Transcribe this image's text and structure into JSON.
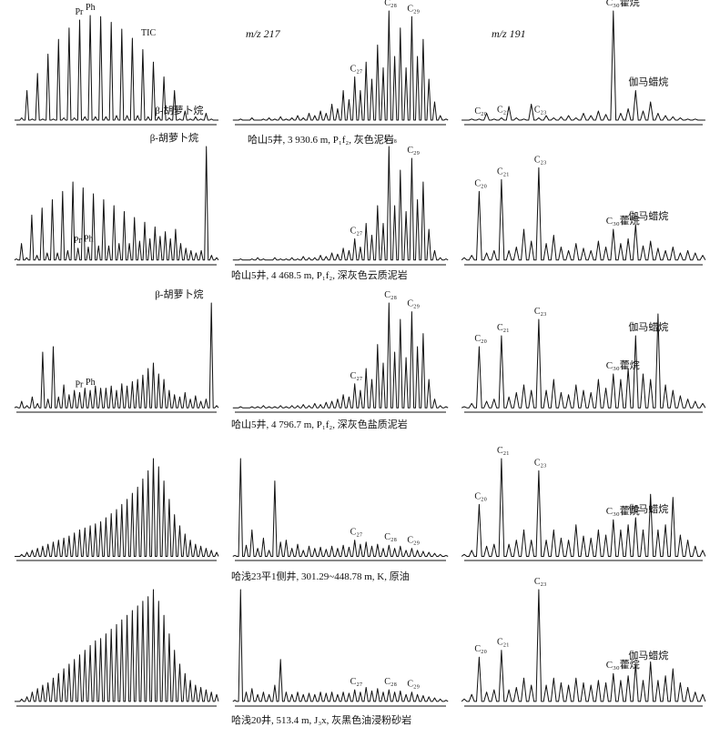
{
  "figure": {
    "panel_headers": [
      "TIC",
      "m/z 217",
      "m/z 191"
    ]
  },
  "chart_data": [
    {
      "type": "line",
      "sample_index": 0,
      "caption": "哈山5井, 3 930.6 m, P₁f₂, 灰色泥岩",
      "panels": {
        "tic": {
          "title": "TIC",
          "series": [
            {
              "name": "TIC",
              "values": [
                0.04,
                0.06,
                0.3,
                0.05,
                0.45,
                0.05,
                0.62,
                0.05,
                0.75,
                0.06,
                0.85,
                0.06,
                0.92,
                0.07,
                0.96,
                0.07,
                0.95,
                0.07,
                0.9,
                0.08,
                0.84,
                0.08,
                0.76,
                0.08,
                0.66,
                0.07,
                0.55,
                0.07,
                0.42,
                0.06,
                0.3,
                0.05,
                0.12,
                0.05,
                0.07,
                0.05,
                0.1,
                0.05,
                0.04
              ]
            }
          ],
          "labels": [
            {
              "text": "Pr",
              "color": "#2b3a8f"
            },
            {
              "text": "Ph",
              "color": "#2b3a8f"
            },
            {
              "text": "β-胡萝卜烷",
              "color": "#111111"
            }
          ]
        },
        "m217": {
          "title": "m/z 217",
          "series": [
            {
              "name": "m/z 217",
              "values": [
                0.04,
                0.05,
                0.04,
                0.06,
                0.04,
                0.05,
                0.06,
                0.05,
                0.07,
                0.05,
                0.06,
                0.08,
                0.06,
                0.1,
                0.08,
                0.12,
                0.1,
                0.18,
                0.14,
                0.3,
                0.22,
                0.42,
                0.3,
                0.55,
                0.4,
                0.7,
                0.5,
                1.0,
                0.6,
                0.85,
                0.5,
                0.95,
                0.6,
                0.75,
                0.4,
                0.2,
                0.08,
                0.05
              ]
            }
          ],
          "labels": [
            {
              "text": "C₂₇"
            },
            {
              "text": "C₂₈"
            },
            {
              "text": "C₂₉"
            }
          ]
        },
        "m191": {
          "title": "m/z 191",
          "series": [
            {
              "name": "m/z 191",
              "values": [
                0.04,
                0.05,
                0.05,
                0.1,
                0.05,
                0.06,
                0.16,
                0.06,
                0.05,
                0.18,
                0.06,
                0.08,
                0.06,
                0.07,
                0.08,
                0.06,
                0.1,
                0.08,
                0.12,
                0.09,
                1.0,
                0.1,
                0.14,
                0.3,
                0.12,
                0.2,
                0.1,
                0.08,
                0.07,
                0.06,
                0.05,
                0.05,
                0.04
              ]
            }
          ],
          "labels": [
            {
              "text": "C₂₀"
            },
            {
              "text": "C₂₁"
            },
            {
              "text": "C₂₃"
            },
            {
              "text": "C₃₀藿烷"
            },
            {
              "text": "伽马蜡烷"
            }
          ]
        }
      }
    },
    {
      "type": "line",
      "sample_index": 1,
      "caption": "哈山5井, 4 468.5 m, P₁f₂, 深灰色云质泥岩",
      "panels": {
        "tic": {
          "series": [
            {
              "name": "TIC",
              "values": [
                0.05,
                0.18,
                0.06,
                0.42,
                0.08,
                0.48,
                0.1,
                0.55,
                0.1,
                0.62,
                0.12,
                0.7,
                0.14,
                0.65,
                0.15,
                0.6,
                0.16,
                0.55,
                0.16,
                0.5,
                0.18,
                0.45,
                0.18,
                0.4,
                0.2,
                0.36,
                0.22,
                0.32,
                0.24,
                0.28,
                0.22,
                0.3,
                0.18,
                0.14,
                0.12,
                0.1,
                0.12,
                1.0,
                0.08,
                0.06
              ]
            }
          ],
          "labels": [
            {
              "text": "Pr"
            },
            {
              "text": "Ph"
            },
            {
              "text": "β-胡萝卜烷"
            }
          ]
        },
        "m217": {
          "series": [
            {
              "name": "m/z 217",
              "values": [
                0.04,
                0.05,
                0.04,
                0.05,
                0.06,
                0.05,
                0.04,
                0.06,
                0.05,
                0.05,
                0.06,
                0.05,
                0.07,
                0.06,
                0.06,
                0.08,
                0.07,
                0.1,
                0.09,
                0.14,
                0.12,
                0.22,
                0.15,
                0.35,
                0.25,
                0.5,
                0.35,
                1.0,
                0.5,
                0.8,
                0.45,
                0.9,
                0.55,
                0.7,
                0.3,
                0.12,
                0.06,
                0.05
              ]
            }
          ],
          "labels": [
            {
              "text": "C₂₇"
            },
            {
              "text": "C₂₈"
            },
            {
              "text": "C₂₉"
            }
          ]
        },
        "m191": {
          "series": [
            {
              "name": "m/z 191",
              "values": [
                0.06,
                0.08,
                0.62,
                0.1,
                0.12,
                0.72,
                0.12,
                0.15,
                0.3,
                0.2,
                0.82,
                0.18,
                0.25,
                0.15,
                0.12,
                0.18,
                0.14,
                0.12,
                0.2,
                0.15,
                0.3,
                0.18,
                0.22,
                0.34,
                0.16,
                0.2,
                0.14,
                0.12,
                0.15,
                0.1,
                0.12,
                0.1,
                0.08
              ]
            }
          ],
          "labels": [
            {
              "text": "C₂₀"
            },
            {
              "text": "C₂₁"
            },
            {
              "text": "C₂₃"
            },
            {
              "text": "C₃₀藿烷"
            },
            {
              "text": "伽马蜡烷"
            }
          ]
        }
      }
    },
    {
      "type": "line",
      "sample_index": 2,
      "caption": "哈山5井, 4 796.7 m, P₁f₂, 深灰色盐质泥岩",
      "panels": {
        "tic": {
          "series": [
            {
              "name": "TIC",
              "values": [
                0.05,
                0.1,
                0.06,
                0.14,
                0.08,
                0.55,
                0.12,
                0.6,
                0.14,
                0.25,
                0.16,
                0.2,
                0.18,
                0.22,
                0.2,
                0.24,
                0.22,
                0.22,
                0.24,
                0.2,
                0.26,
                0.24,
                0.28,
                0.3,
                0.34,
                0.4,
                0.45,
                0.35,
                0.3,
                0.2,
                0.16,
                0.14,
                0.18,
                0.12,
                0.15,
                0.1,
                0.12,
                1.0,
                0.06
              ]
            }
          ],
          "labels": [
            {
              "text": "Pr"
            },
            {
              "text": "Ph"
            },
            {
              "text": "β-胡萝卜烷"
            }
          ]
        },
        "m217": {
          "series": [
            {
              "name": "m/z 217",
              "values": [
                0.04,
                0.05,
                0.04,
                0.05,
                0.05,
                0.06,
                0.05,
                0.05,
                0.06,
                0.05,
                0.06,
                0.06,
                0.07,
                0.06,
                0.08,
                0.07,
                0.09,
                0.1,
                0.12,
                0.16,
                0.14,
                0.26,
                0.2,
                0.4,
                0.3,
                0.62,
                0.45,
                1.0,
                0.55,
                0.85,
                0.5,
                0.92,
                0.6,
                0.72,
                0.3,
                0.12,
                0.06,
                0.05
              ]
            }
          ],
          "labels": [
            {
              "text": "C₂₇"
            },
            {
              "text": "C₂₈"
            },
            {
              "text": "C₂₉"
            }
          ]
        },
        "m191": {
          "series": [
            {
              "name": "m/z 191",
              "values": [
                0.05,
                0.08,
                0.6,
                0.1,
                0.12,
                0.7,
                0.14,
                0.18,
                0.25,
                0.2,
                0.85,
                0.2,
                0.3,
                0.18,
                0.16,
                0.25,
                0.2,
                0.18,
                0.3,
                0.22,
                0.35,
                0.3,
                0.4,
                0.7,
                0.35,
                0.3,
                0.9,
                0.25,
                0.2,
                0.15,
                0.12,
                0.1,
                0.08
              ]
            }
          ],
          "labels": [
            {
              "text": "C₂₀"
            },
            {
              "text": "C₂₁"
            },
            {
              "text": "C₂₃"
            },
            {
              "text": "C₃₀藿烷"
            },
            {
              "text": "伽马蜡烷"
            }
          ]
        }
      }
    },
    {
      "type": "line",
      "sample_index": 3,
      "caption": "哈浅23平1侧井, 301.29~448.78 m, K, 原油",
      "panels": {
        "tic": {
          "series": [
            {
              "name": "TIC",
              "values": [
                0.04,
                0.06,
                0.08,
                0.1,
                0.12,
                0.14,
                0.16,
                0.18,
                0.2,
                0.22,
                0.24,
                0.27,
                0.3,
                0.32,
                0.34,
                0.36,
                0.38,
                0.42,
                0.46,
                0.5,
                0.55,
                0.6,
                0.66,
                0.72,
                0.8,
                0.88,
                1.0,
                0.92,
                0.78,
                0.6,
                0.45,
                0.34,
                0.26,
                0.2,
                0.16,
                0.14,
                0.12,
                0.1,
                0.08
              ]
            }
          ],
          "labels": []
        },
        "m217": {
          "series": [
            {
              "name": "m/z 217",
              "values": [
                0.05,
                1.0,
                0.15,
                0.3,
                0.12,
                0.22,
                0.1,
                0.78,
                0.18,
                0.2,
                0.12,
                0.16,
                0.1,
                0.14,
                0.12,
                0.13,
                0.11,
                0.14,
                0.12,
                0.15,
                0.13,
                0.2,
                0.16,
                0.18,
                0.14,
                0.16,
                0.12,
                0.15,
                0.12,
                0.14,
                0.1,
                0.12,
                0.1,
                0.09,
                0.08,
                0.07,
                0.06,
                0.05
              ]
            }
          ],
          "labels": [
            {
              "text": "C₂₇"
            },
            {
              "text": "C₂₈"
            },
            {
              "text": "C₂₉"
            }
          ]
        },
        "m191": {
          "series": [
            {
              "name": "m/z 191",
              "values": [
                0.06,
                0.1,
                0.55,
                0.14,
                0.16,
                1.0,
                0.16,
                0.2,
                0.3,
                0.2,
                0.88,
                0.2,
                0.3,
                0.22,
                0.2,
                0.35,
                0.24,
                0.22,
                0.3,
                0.25,
                0.4,
                0.3,
                0.35,
                0.42,
                0.3,
                0.65,
                0.3,
                0.35,
                0.62,
                0.25,
                0.2,
                0.14,
                0.1
              ]
            }
          ],
          "labels": [
            {
              "text": "C₂₀"
            },
            {
              "text": "C₂₁"
            },
            {
              "text": "C₂₃"
            },
            {
              "text": "C₃₀藿烷"
            },
            {
              "text": "伽马蜡烷"
            }
          ]
        }
      }
    },
    {
      "type": "line",
      "sample_index": 4,
      "caption": "哈浅20井, 513.4 m, J₃x, 灰黑色油浸粉砂岩",
      "panels": {
        "tic": {
          "series": [
            {
              "name": "TIC",
              "values": [
                0.04,
                0.06,
                0.08,
                0.12,
                0.15,
                0.18,
                0.2,
                0.24,
                0.28,
                0.32,
                0.36,
                0.4,
                0.44,
                0.48,
                0.52,
                0.56,
                0.58,
                0.62,
                0.66,
                0.7,
                0.74,
                0.78,
                0.82,
                0.86,
                0.9,
                0.94,
                1.0,
                0.9,
                0.78,
                0.62,
                0.48,
                0.36,
                0.28,
                0.22,
                0.18,
                0.16,
                0.14,
                0.12,
                0.1
              ]
            }
          ],
          "labels": []
        },
        "m217": {
          "series": [
            {
              "name": "m/z 217",
              "values": [
                0.05,
                1.0,
                0.12,
                0.15,
                0.1,
                0.12,
                0.1,
                0.18,
                0.4,
                0.12,
                0.1,
                0.12,
                0.1,
                0.11,
                0.1,
                0.12,
                0.11,
                0.12,
                0.1,
                0.12,
                0.11,
                0.14,
                0.12,
                0.16,
                0.13,
                0.15,
                0.12,
                0.14,
                0.12,
                0.13,
                0.1,
                0.12,
                0.1,
                0.09,
                0.08,
                0.07,
                0.06,
                0.05
              ]
            }
          ],
          "labels": [
            {
              "text": "C₂₇"
            },
            {
              "text": "C₂₈"
            },
            {
              "text": "C₂₉"
            }
          ]
        },
        "m191": {
          "series": [
            {
              "name": "m/z 191",
              "values": [
                0.06,
                0.1,
                0.42,
                0.12,
                0.14,
                0.48,
                0.14,
                0.16,
                0.24,
                0.18,
                1.0,
                0.18,
                0.24,
                0.2,
                0.18,
                0.24,
                0.2,
                0.18,
                0.22,
                0.2,
                0.28,
                0.22,
                0.26,
                0.36,
                0.22,
                0.38,
                0.22,
                0.26,
                0.32,
                0.2,
                0.16,
                0.12,
                0.1
              ]
            }
          ],
          "labels": [
            {
              "text": "C₂₀"
            },
            {
              "text": "C₂₁"
            },
            {
              "text": "C₂₃"
            },
            {
              "text": "C₃₀藿烷"
            },
            {
              "text": "伽马蜡烷"
            }
          ]
        }
      }
    }
  ]
}
